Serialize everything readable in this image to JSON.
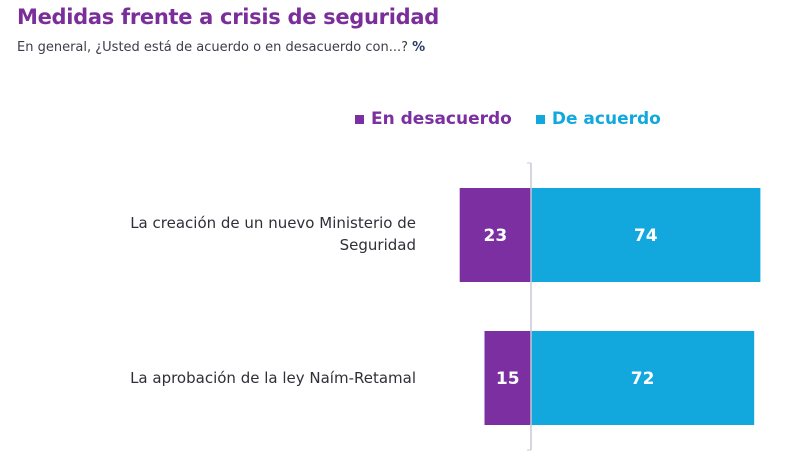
{
  "chart_data": {
    "type": "bar",
    "orientation": "horizontal-diverging",
    "title": "Medidas frente a crisis de seguridad",
    "subtitle": "En general, ¿Usted está de acuerdo o en desacuerdo con...?",
    "unit": "%",
    "categories": [
      "La creación de un nuevo Ministerio de Seguridad",
      "La aprobación de la ley Naím-Retamal"
    ],
    "series": [
      {
        "name": "En desacuerdo",
        "color": "#7b2fa0",
        "direction": "left",
        "values": [
          23,
          15
        ]
      },
      {
        "name": "De acuerdo",
        "color": "#12a8de",
        "direction": "right",
        "values": [
          74,
          72
        ]
      }
    ],
    "legend_position": "top-right",
    "grid": false
  },
  "colors": {
    "title": "#7a2e9a",
    "axis": "#c8c8d0"
  }
}
